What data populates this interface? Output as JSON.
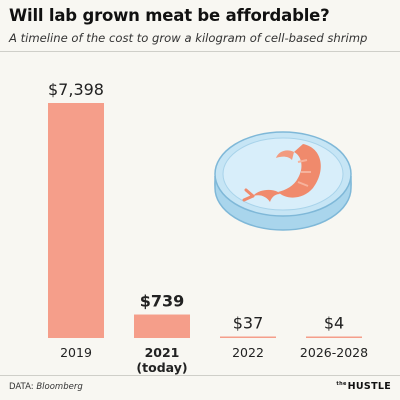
{
  "header": {
    "title": "Will lab grown meat be affordable?",
    "subtitle": "A timeline of the cost to grow a kilogram of cell-based shrimp"
  },
  "footer": {
    "source_prefix": "DATA: ",
    "source_name": "Bloomberg",
    "brand_small": "the",
    "brand": "HUSTLE"
  },
  "illustration": {
    "icon": "petri-dish-with-shrimp-icon"
  },
  "colors": {
    "bar": "#f59e8a",
    "background": "#f8f7f2",
    "dish": "#b9ddf0",
    "shrimp": "#f08a6c"
  },
  "chart_data": {
    "type": "bar",
    "categories": [
      "2019",
      "2021\n(today)",
      "2022",
      "2026-2028"
    ],
    "values": [
      7398,
      739,
      37,
      4
    ],
    "value_labels": [
      "$7,398",
      "$739",
      "$37",
      "$4"
    ],
    "highlight_index": 1,
    "ylim": [
      0,
      7398
    ],
    "xlabel": "",
    "ylabel": "",
    "grid": false
  }
}
